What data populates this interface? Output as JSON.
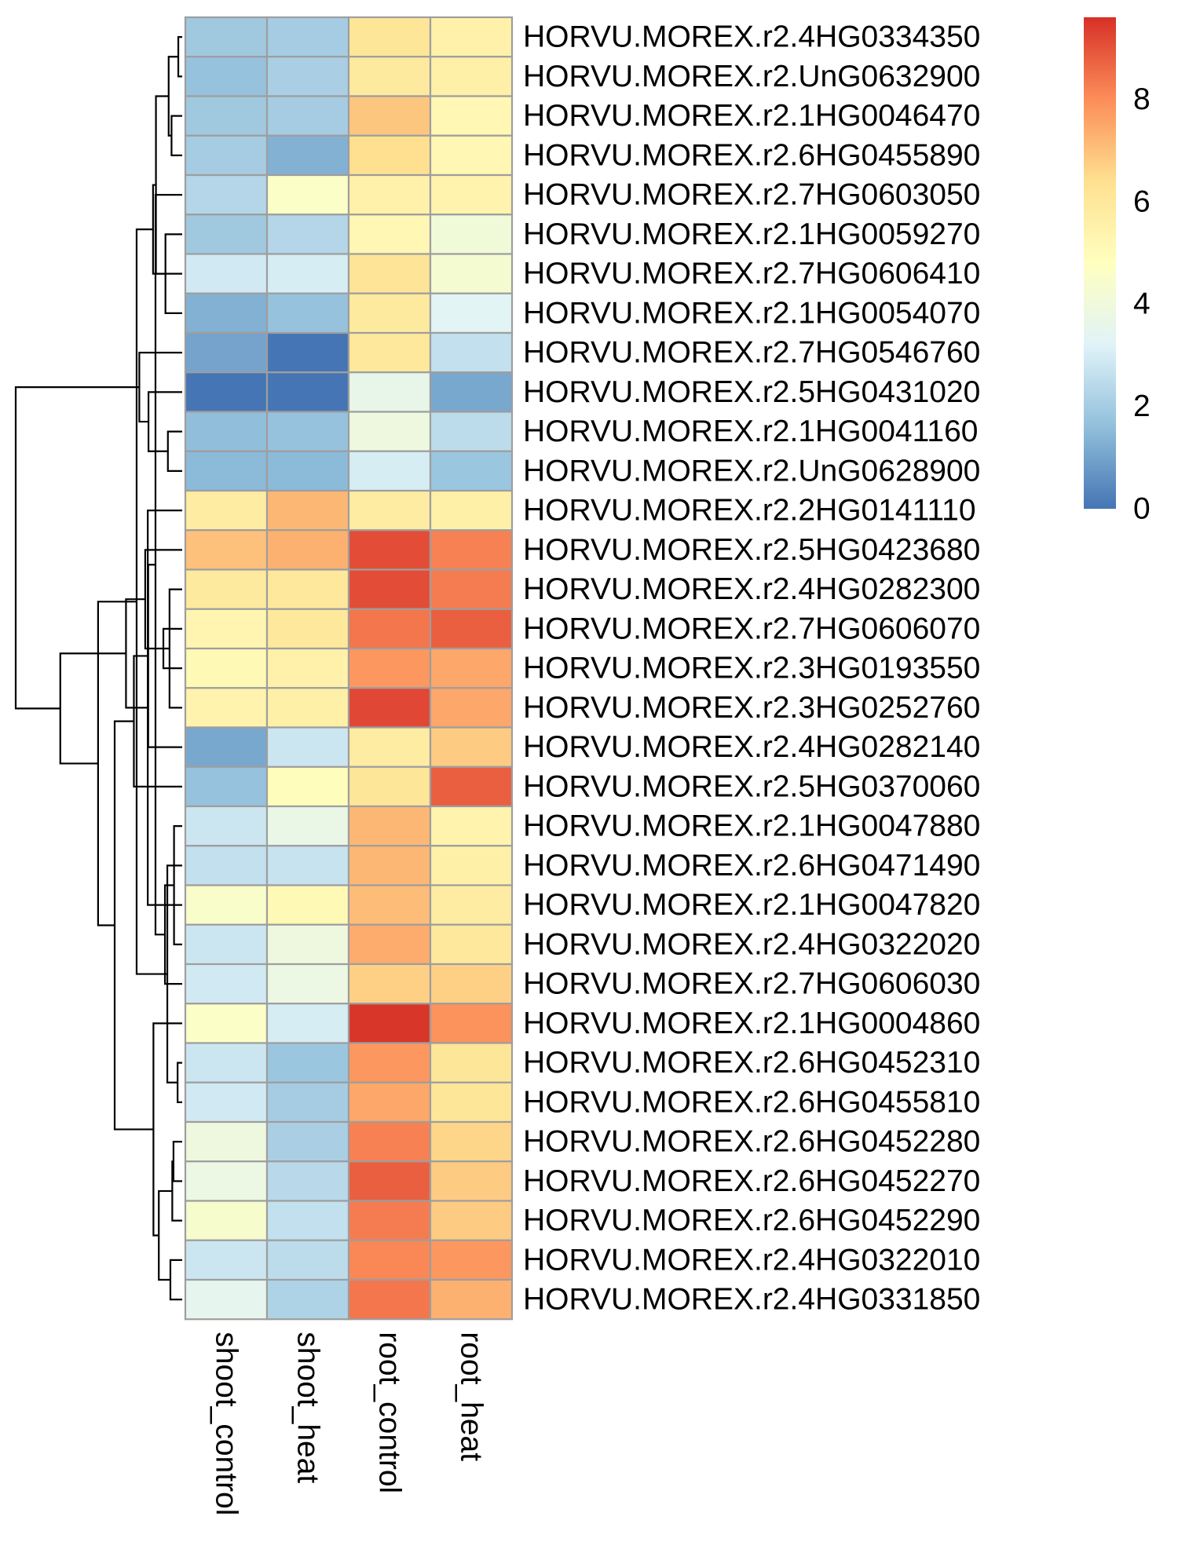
{
  "chart_data": {
    "type": "heatmap",
    "columns": [
      "shoot_control",
      "shoot_heat",
      "root_control",
      "root_heat"
    ],
    "rows": [
      "HORVU.MOREX.r2.4HG0334350",
      "HORVU.MOREX.r2.UnG0632900",
      "HORVU.MOREX.r2.1HG0046470",
      "HORVU.MOREX.r2.6HG0455890",
      "HORVU.MOREX.r2.7HG0603050",
      "HORVU.MOREX.r2.1HG0059270",
      "HORVU.MOREX.r2.7HG0606410",
      "HORVU.MOREX.r2.1HG0054070",
      "HORVU.MOREX.r2.7HG0546760",
      "HORVU.MOREX.r2.5HG0431020",
      "HORVU.MOREX.r2.1HG0041160",
      "HORVU.MOREX.r2.UnG0628900",
      "HORVU.MOREX.r2.2HG0141110",
      "HORVU.MOREX.r2.5HG0423680",
      "HORVU.MOREX.r2.4HG0282300",
      "HORVU.MOREX.r2.7HG0606070",
      "HORVU.MOREX.r2.3HG0193550",
      "HORVU.MOREX.r2.3HG0252760",
      "HORVU.MOREX.r2.4HG0282140",
      "HORVU.MOREX.r2.5HG0370060",
      "HORVU.MOREX.r2.1HG0047880",
      "HORVU.MOREX.r2.6HG0471490",
      "HORVU.MOREX.r2.1HG0047820",
      "HORVU.MOREX.r2.4HG0322020",
      "HORVU.MOREX.r2.7HG0606030",
      "HORVU.MOREX.r2.1HG0004860",
      "HORVU.MOREX.r2.6HG0452310",
      "HORVU.MOREX.r2.6HG0455810",
      "HORVU.MOREX.r2.6HG0452280",
      "HORVU.MOREX.r2.6HG0452270",
      "HORVU.MOREX.r2.6HG0452290",
      "HORVU.MOREX.r2.4HG0322010",
      "HORVU.MOREX.r2.4HG0331850"
    ],
    "values": [
      [
        1.9,
        2.0,
        6.1,
        5.5
      ],
      [
        1.7,
        2.1,
        5.9,
        5.6
      ],
      [
        1.9,
        2.0,
        6.9,
        5.2
      ],
      [
        2.0,
        1.3,
        6.4,
        5.2
      ],
      [
        2.3,
        4.6,
        5.5,
        5.4
      ],
      [
        1.9,
        2.3,
        5.2,
        4.1
      ],
      [
        2.9,
        3.0,
        6.2,
        4.3
      ],
      [
        1.3,
        1.7,
        5.9,
        3.3
      ],
      [
        1.0,
        0.0,
        6.0,
        2.6
      ],
      [
        0.0,
        0.0,
        3.6,
        1.1
      ],
      [
        1.6,
        1.7,
        3.9,
        2.5
      ],
      [
        1.5,
        1.5,
        3.0,
        1.8
      ],
      [
        5.8,
        7.2,
        5.8,
        5.6
      ],
      [
        7.0,
        7.3,
        9.1,
        8.2
      ],
      [
        5.9,
        6.0,
        9.1,
        8.3
      ],
      [
        5.3,
        6.0,
        8.4,
        8.8
      ],
      [
        5.1,
        5.5,
        7.8,
        7.5
      ],
      [
        5.4,
        5.6,
        9.2,
        7.5
      ],
      [
        1.1,
        2.8,
        5.8,
        6.8
      ],
      [
        1.7,
        4.9,
        6.1,
        8.8
      ],
      [
        2.8,
        3.7,
        7.2,
        5.4
      ],
      [
        2.6,
        2.7,
        7.2,
        5.6
      ],
      [
        4.5,
        5.1,
        7.1,
        5.8
      ],
      [
        2.8,
        3.9,
        7.4,
        6.0
      ],
      [
        2.9,
        3.8,
        6.7,
        6.7
      ],
      [
        4.6,
        3.0,
        9.5,
        7.9
      ],
      [
        2.8,
        1.8,
        7.8,
        6.1
      ],
      [
        2.9,
        2.0,
        7.5,
        6.1
      ],
      [
        3.9,
        2.1,
        8.2,
        6.6
      ],
      [
        3.8,
        2.4,
        8.8,
        6.8
      ],
      [
        4.4,
        2.6,
        8.3,
        6.8
      ],
      [
        2.8,
        2.5,
        8.1,
        7.8
      ],
      [
        3.5,
        2.2,
        8.4,
        7.3
      ]
    ],
    "color_scale": {
      "min": 0,
      "max": 9.6,
      "colors": [
        "#4575b4",
        "#91bfdb",
        "#e0f3f8",
        "#ffffbf",
        "#fee090",
        "#fc8d59",
        "#d73027"
      ]
    },
    "legend": {
      "position": "top-right",
      "ticks": [
        0,
        2,
        4,
        6,
        8
      ],
      "tick_labels": [
        "0",
        "2",
        "4",
        "6",
        "8"
      ]
    },
    "cell_border_color": "#9e9e9e",
    "row_dendrogram": true,
    "column_dendrogram": false,
    "title": "",
    "xlabel": "",
    "ylabel": ""
  }
}
